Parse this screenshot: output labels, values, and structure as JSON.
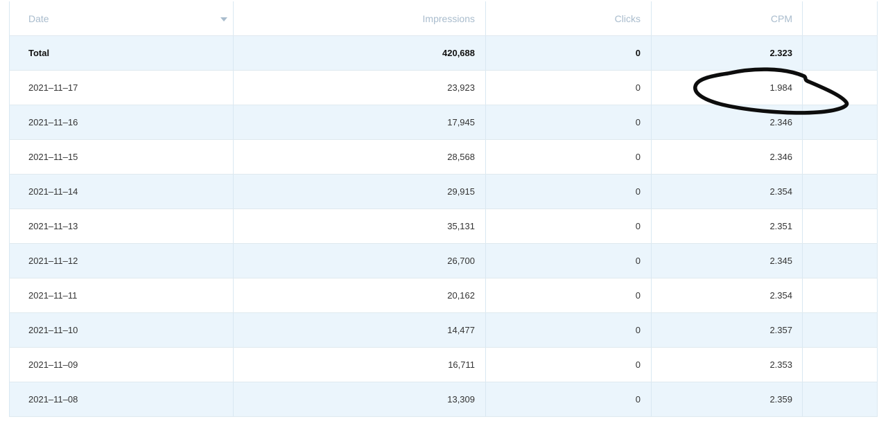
{
  "table": {
    "columns": [
      {
        "id": "date",
        "label": "Date",
        "align": "left",
        "has_sort_caret": true
      },
      {
        "id": "impressions",
        "label": "Impressions",
        "align": "right",
        "has_sort_caret": false
      },
      {
        "id": "clicks",
        "label": "Clicks",
        "align": "right",
        "has_sort_caret": false
      },
      {
        "id": "cpm",
        "label": "CPM",
        "align": "right",
        "has_sort_caret": false
      },
      {
        "id": "blank",
        "label": "",
        "align": "right",
        "has_sort_caret": false
      }
    ],
    "total_row": {
      "date": "Total",
      "impressions": "420,688",
      "clicks": "0",
      "cpm": "2.323"
    },
    "rows": [
      {
        "date": "2021–11–17",
        "impressions": "23,923",
        "clicks": "0",
        "cpm": "1.984"
      },
      {
        "date": "2021–11–16",
        "impressions": "17,945",
        "clicks": "0",
        "cpm": "2.346"
      },
      {
        "date": "2021–11–15",
        "impressions": "28,568",
        "clicks": "0",
        "cpm": "2.346"
      },
      {
        "date": "2021–11–14",
        "impressions": "29,915",
        "clicks": "0",
        "cpm": "2.354"
      },
      {
        "date": "2021–11–13",
        "impressions": "35,131",
        "clicks": "0",
        "cpm": "2.351"
      },
      {
        "date": "2021–11–12",
        "impressions": "26,700",
        "clicks": "0",
        "cpm": "2.345"
      },
      {
        "date": "2021–11–11",
        "impressions": "20,162",
        "clicks": "0",
        "cpm": "2.354"
      },
      {
        "date": "2021–11–10",
        "impressions": "14,477",
        "clicks": "0",
        "cpm": "2.357"
      },
      {
        "date": "2021–11–09",
        "impressions": "16,711",
        "clicks": "0",
        "cpm": "2.353"
      },
      {
        "date": "2021–11–08",
        "impressions": "13,309",
        "clicks": "0",
        "cpm": "2.359"
      }
    ]
  },
  "annotation": {
    "type": "hand-drawn-circle",
    "highlights": "CPM value 1.984 in row 2021–11–17",
    "color": "#0d0d0d"
  },
  "icons": {
    "date_header_caret": "chevron-down"
  },
  "colors": {
    "stripe_background": "#ebf5fc",
    "vertical_border": "#d9e8f2",
    "horizontal_border": "#dfe9ef",
    "header_text": "#a9bccd",
    "body_text": "#333333",
    "total_text": "#111111",
    "annotation_stroke": "#0d0d0d"
  }
}
